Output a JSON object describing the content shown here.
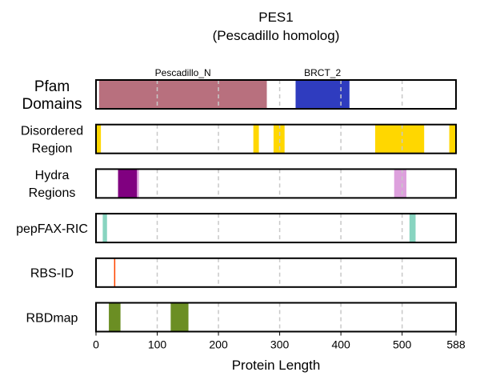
{
  "chart_data": {
    "type": "track",
    "title": "PES1",
    "subtitle": "(Pescadillo homolog)",
    "xlabel": "Protein Length",
    "xlim": [
      0,
      588
    ],
    "xticks": [
      0,
      100,
      200,
      300,
      400,
      500,
      588
    ],
    "grid_x": [
      100,
      200,
      300,
      400,
      500
    ],
    "tracks": [
      {
        "label": [
          "Pfam",
          "Domains"
        ],
        "label_style": "large",
        "segments": [
          {
            "start": 5,
            "end": 279,
            "color": "#b8707e",
            "name": "Pescadillo_N"
          },
          {
            "start": 326,
            "end": 414,
            "color": "#2f3cbf",
            "name": "BRCT_2"
          }
        ]
      },
      {
        "label": [
          "Disordered",
          "Region"
        ],
        "segments": [
          {
            "start": 0,
            "end": 8,
            "color": "#ffd700"
          },
          {
            "start": 257,
            "end": 266,
            "color": "#ffd700"
          },
          {
            "start": 290,
            "end": 308,
            "color": "#ffd700"
          },
          {
            "start": 456,
            "end": 536,
            "color": "#ffd700"
          },
          {
            "start": 577,
            "end": 588,
            "color": "#ffd700"
          }
        ]
      },
      {
        "label": [
          "Hydra",
          "Regions"
        ],
        "segments": [
          {
            "start": 36,
            "end": 67,
            "color": "#800080"
          },
          {
            "start": 67,
            "end": 70,
            "color": "#dda0dd"
          },
          {
            "start": 487,
            "end": 507,
            "color": "#dda0dd"
          }
        ]
      },
      {
        "label": [
          "pepFAX-RIC"
        ],
        "segments": [
          {
            "start": 11,
            "end": 18,
            "color": "#88d4c0"
          },
          {
            "start": 512,
            "end": 522,
            "color": "#88d4c0"
          }
        ]
      },
      {
        "label": [
          "RBS-ID"
        ],
        "segments": [
          {
            "start": 29.5,
            "end": 31.5,
            "color": "#ff4500"
          }
        ]
      },
      {
        "label": [
          "RBDmap"
        ],
        "segments": [
          {
            "start": 21,
            "end": 40,
            "color": "#6b8e23"
          },
          {
            "start": 122,
            "end": 151,
            "color": "#6b8e23"
          }
        ]
      }
    ]
  }
}
